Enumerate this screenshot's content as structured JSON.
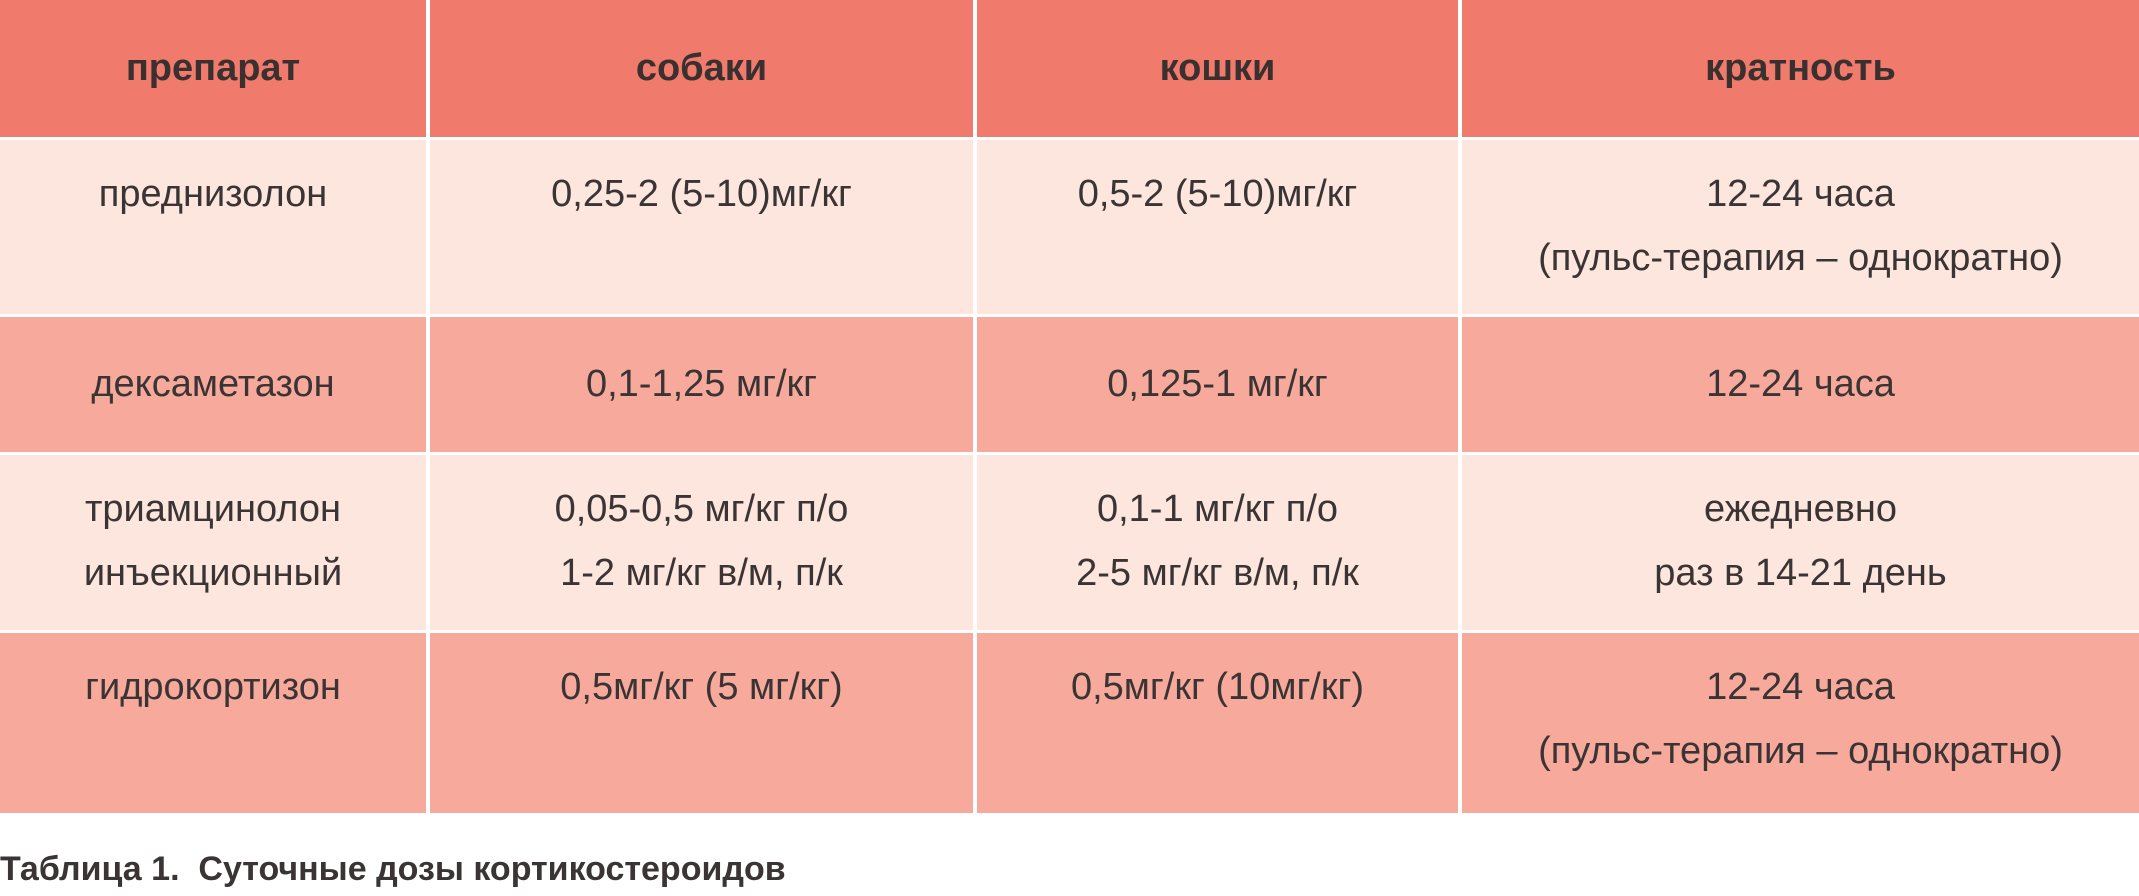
{
  "table": {
    "headers": [
      "препарат",
      "собаки",
      "кошки",
      "кратность"
    ],
    "rows": [
      {
        "cells": [
          [
            "преднизолон"
          ],
          [
            "0,25-2 (5-10)мг/кг"
          ],
          [
            "0,5-2 (5-10)мг/кг"
          ],
          [
            "12-24 часа",
            "(пульс-терапия – однократно)"
          ]
        ]
      },
      {
        "cells": [
          [
            "дексаметазон"
          ],
          [
            "0,1-1,25 мг/кг"
          ],
          [
            "0,125-1 мг/кг"
          ],
          [
            "12-24 часа"
          ]
        ]
      },
      {
        "cells": [
          [
            "триамцинолон",
            "инъекционный"
          ],
          [
            "0,05-0,5 мг/кг п/о",
            "1-2 мг/кг в/м, п/к"
          ],
          [
            "0,1-1 мг/кг п/о",
            "2-5 мг/кг в/м, п/к"
          ],
          [
            "ежедневно",
            "раз в 14-21 день"
          ]
        ]
      },
      {
        "cells": [
          [
            "гидрокортизон"
          ],
          [
            "0,5мг/кг (5 мг/кг)"
          ],
          [
            "0,5мг/кг (10мг/кг)"
          ],
          [
            "12-24 часа",
            "(пульс-терапия – однократно)"
          ]
        ]
      }
    ]
  },
  "caption": "Таблица 1.  Суточные дозы кортикостероидов",
  "colors": {
    "header": "#f07a6b",
    "row_light": "#fce6dd",
    "row_dark": "#f7aa9c",
    "text": "#3a3434"
  }
}
